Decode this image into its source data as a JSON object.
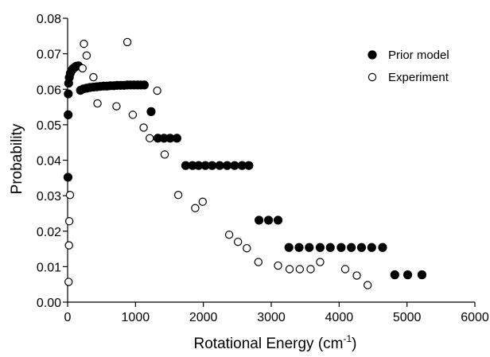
{
  "chart_data": {
    "type": "scatter",
    "xlabel": "Rotational Energy (cm",
    "xlabel_sup": "-1",
    "xlabel_tail": ")",
    "ylabel": "Probability",
    "xlim": [
      0,
      6000
    ],
    "ylim": [
      0,
      0.08
    ],
    "x_ticks": [
      "0",
      "1000",
      "2000",
      "3000",
      "4000",
      "5000",
      "6000"
    ],
    "y_ticks": [
      "0.00",
      "0.01",
      "0.02",
      "0.03",
      "0.04",
      "0.05",
      "0.06",
      "0.07",
      "0.08"
    ],
    "grid": false,
    "legend_position": "top-right",
    "series": [
      {
        "name": "Prior model",
        "marker": "filled-circle",
        "color": "#000000",
        "points": [
          [
            5,
            0.0352
          ],
          [
            8,
            0.0528
          ],
          [
            10,
            0.0587
          ],
          [
            15,
            0.0617
          ],
          [
            25,
            0.0633
          ],
          [
            40,
            0.0645
          ],
          [
            60,
            0.0653
          ],
          [
            80,
            0.0658
          ],
          [
            105,
            0.0662
          ],
          [
            130,
            0.0665
          ],
          [
            160,
            0.0666
          ],
          [
            190,
            0.0597
          ],
          [
            230,
            0.0601
          ],
          [
            280,
            0.0603
          ],
          [
            330,
            0.0605
          ],
          [
            380,
            0.0606
          ],
          [
            430,
            0.0607
          ],
          [
            480,
            0.0608
          ],
          [
            530,
            0.0609
          ],
          [
            580,
            0.0609
          ],
          [
            630,
            0.061
          ],
          [
            680,
            0.061
          ],
          [
            730,
            0.0611
          ],
          [
            780,
            0.0611
          ],
          [
            830,
            0.0611
          ],
          [
            880,
            0.0612
          ],
          [
            930,
            0.0612
          ],
          [
            980,
            0.0612
          ],
          [
            1030,
            0.0612
          ],
          [
            1080,
            0.0612
          ],
          [
            1130,
            0.0612
          ],
          [
            1230,
            0.0537
          ],
          [
            1330,
            0.0462
          ],
          [
            1420,
            0.0462
          ],
          [
            1510,
            0.0462
          ],
          [
            1610,
            0.0462
          ],
          [
            1740,
            0.0385
          ],
          [
            1840,
            0.0385
          ],
          [
            1930,
            0.0385
          ],
          [
            2030,
            0.0385
          ],
          [
            2130,
            0.0385
          ],
          [
            2240,
            0.0385
          ],
          [
            2350,
            0.0385
          ],
          [
            2460,
            0.0385
          ],
          [
            2570,
            0.0385
          ],
          [
            2670,
            0.0385
          ],
          [
            2820,
            0.0231
          ],
          [
            2960,
            0.0231
          ],
          [
            3100,
            0.0231
          ],
          [
            3260,
            0.0154
          ],
          [
            3410,
            0.0154
          ],
          [
            3560,
            0.0154
          ],
          [
            3720,
            0.0154
          ],
          [
            3870,
            0.0154
          ],
          [
            4030,
            0.0154
          ],
          [
            4180,
            0.0154
          ],
          [
            4330,
            0.0154
          ],
          [
            4480,
            0.0154
          ],
          [
            4640,
            0.0154
          ],
          [
            4820,
            0.0077
          ],
          [
            5010,
            0.0077
          ],
          [
            5220,
            0.0077
          ]
        ]
      },
      {
        "name": "Experiment",
        "marker": "open-circle",
        "color": "#000000",
        "points": [
          [
            15,
            0.0057
          ],
          [
            20,
            0.016
          ],
          [
            25,
            0.0228
          ],
          [
            35,
            0.0302
          ],
          [
            220,
            0.0659
          ],
          [
            240,
            0.0728
          ],
          [
            280,
            0.0695
          ],
          [
            380,
            0.0634
          ],
          [
            440,
            0.056
          ],
          [
            720,
            0.0552
          ],
          [
            880,
            0.0733
          ],
          [
            960,
            0.0528
          ],
          [
            1120,
            0.0492
          ],
          [
            1210,
            0.0462
          ],
          [
            1320,
            0.0596
          ],
          [
            1430,
            0.0416
          ],
          [
            1630,
            0.0302
          ],
          [
            1880,
            0.0265
          ],
          [
            1990,
            0.0283
          ],
          [
            2380,
            0.019
          ],
          [
            2510,
            0.017
          ],
          [
            2640,
            0.0152
          ],
          [
            2810,
            0.0113
          ],
          [
            3100,
            0.0103
          ],
          [
            3270,
            0.0093
          ],
          [
            3420,
            0.0093
          ],
          [
            3580,
            0.0093
          ],
          [
            3720,
            0.0113
          ],
          [
            4090,
            0.0093
          ],
          [
            4260,
            0.0075
          ],
          [
            4420,
            0.0048
          ]
        ]
      }
    ]
  }
}
